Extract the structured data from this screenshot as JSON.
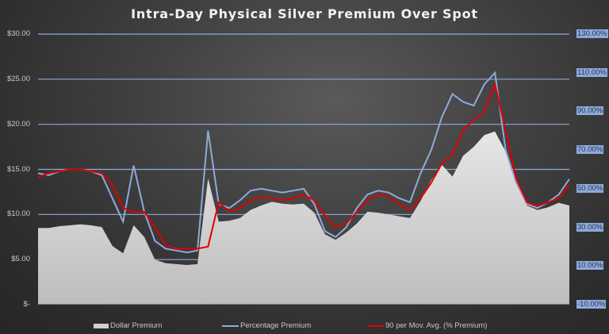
{
  "chart_data": {
    "type": "line",
    "title": "Intra-Day Physical Silver Premium Over Spot",
    "xlabel": "",
    "ylabel": "",
    "y_left": {
      "label": "Dollar Premium",
      "ticks": [
        "$30.00",
        "$25.00",
        "$20.00",
        "$15.00",
        "$10.00",
        "$5.00",
        "$-"
      ],
      "range": [
        0,
        30
      ]
    },
    "y_right": {
      "label": "Percentage Premium",
      "ticks": [
        "130.00%",
        "110.00%",
        "90.00%",
        "70.00%",
        "50.00%",
        "30.00%",
        "10.00%",
        "-10.00%"
      ],
      "range": [
        -10,
        130
      ]
    },
    "grid": true,
    "legend_position": "bottom",
    "x": [
      0,
      2,
      4,
      6,
      8,
      10,
      12,
      14,
      16,
      18,
      20,
      22,
      24,
      26,
      28,
      30,
      32,
      34,
      36,
      38,
      40,
      42,
      44,
      46,
      48,
      50,
      52,
      54,
      56,
      58,
      60,
      62,
      64,
      66,
      68,
      70,
      72,
      74,
      76,
      78,
      80,
      82,
      84,
      86,
      88,
      90,
      92,
      94,
      96,
      98,
      100
    ],
    "series": [
      {
        "name": "Dollar Premium",
        "type": "area",
        "axis": "left",
        "color": "#d0d0d0",
        "values": [
          8.5,
          8.5,
          8.7,
          8.8,
          8.9,
          8.8,
          8.6,
          6.5,
          5.7,
          8.8,
          7.5,
          5.0,
          4.6,
          4.5,
          4.4,
          4.5,
          14,
          9.2,
          9.3,
          9.6,
          10.5,
          11.0,
          11.4,
          11.2,
          11.1,
          11.2,
          10.2,
          7.8,
          7.2,
          8.0,
          9.0,
          10.3,
          10.2,
          10.0,
          9.8,
          9.6,
          11.5,
          13.8,
          15.5,
          14.2,
          16.5,
          17.5,
          18.8,
          19.2,
          17.0,
          13.5,
          11.0,
          10.5,
          10.8,
          11.3,
          11.0
        ]
      },
      {
        "name": "Percentage Premium",
        "type": "line",
        "axis": "right",
        "color": "#8eaadb",
        "values": [
          58,
          57,
          59,
          60,
          60,
          59,
          57,
          45,
          33,
          62,
          38,
          23,
          19,
          18,
          17,
          18,
          80,
          42,
          40,
          44,
          49,
          50,
          49,
          48,
          49,
          50,
          42,
          28,
          25,
          30,
          40,
          47,
          49,
          48,
          45,
          43,
          58,
          70,
          87,
          99,
          95,
          93,
          104,
          110,
          70,
          53,
          42,
          40,
          43,
          47,
          55
        ]
      },
      {
        "name": "90 per Mov. Avg. (% Premium)",
        "type": "line",
        "axis": "right",
        "color": "#e00000",
        "values": [
          56,
          58,
          59,
          60,
          60,
          59,
          58,
          52,
          40,
          38,
          38,
          30,
          21,
          19,
          19,
          19,
          20,
          43,
          38,
          40,
          44,
          46,
          45,
          44,
          45,
          47,
          44,
          36,
          30,
          32,
          38,
          44,
          47,
          46,
          42,
          39,
          45,
          53,
          63,
          68,
          80,
          86,
          90,
          104,
          80,
          55,
          43,
          41,
          43,
          45,
          52
        ]
      }
    ]
  },
  "legend": {
    "dollar": "Dollar Premium",
    "percent": "Percentage Premium",
    "mavg": "90 per Mov. Avg. (% Premium)"
  }
}
